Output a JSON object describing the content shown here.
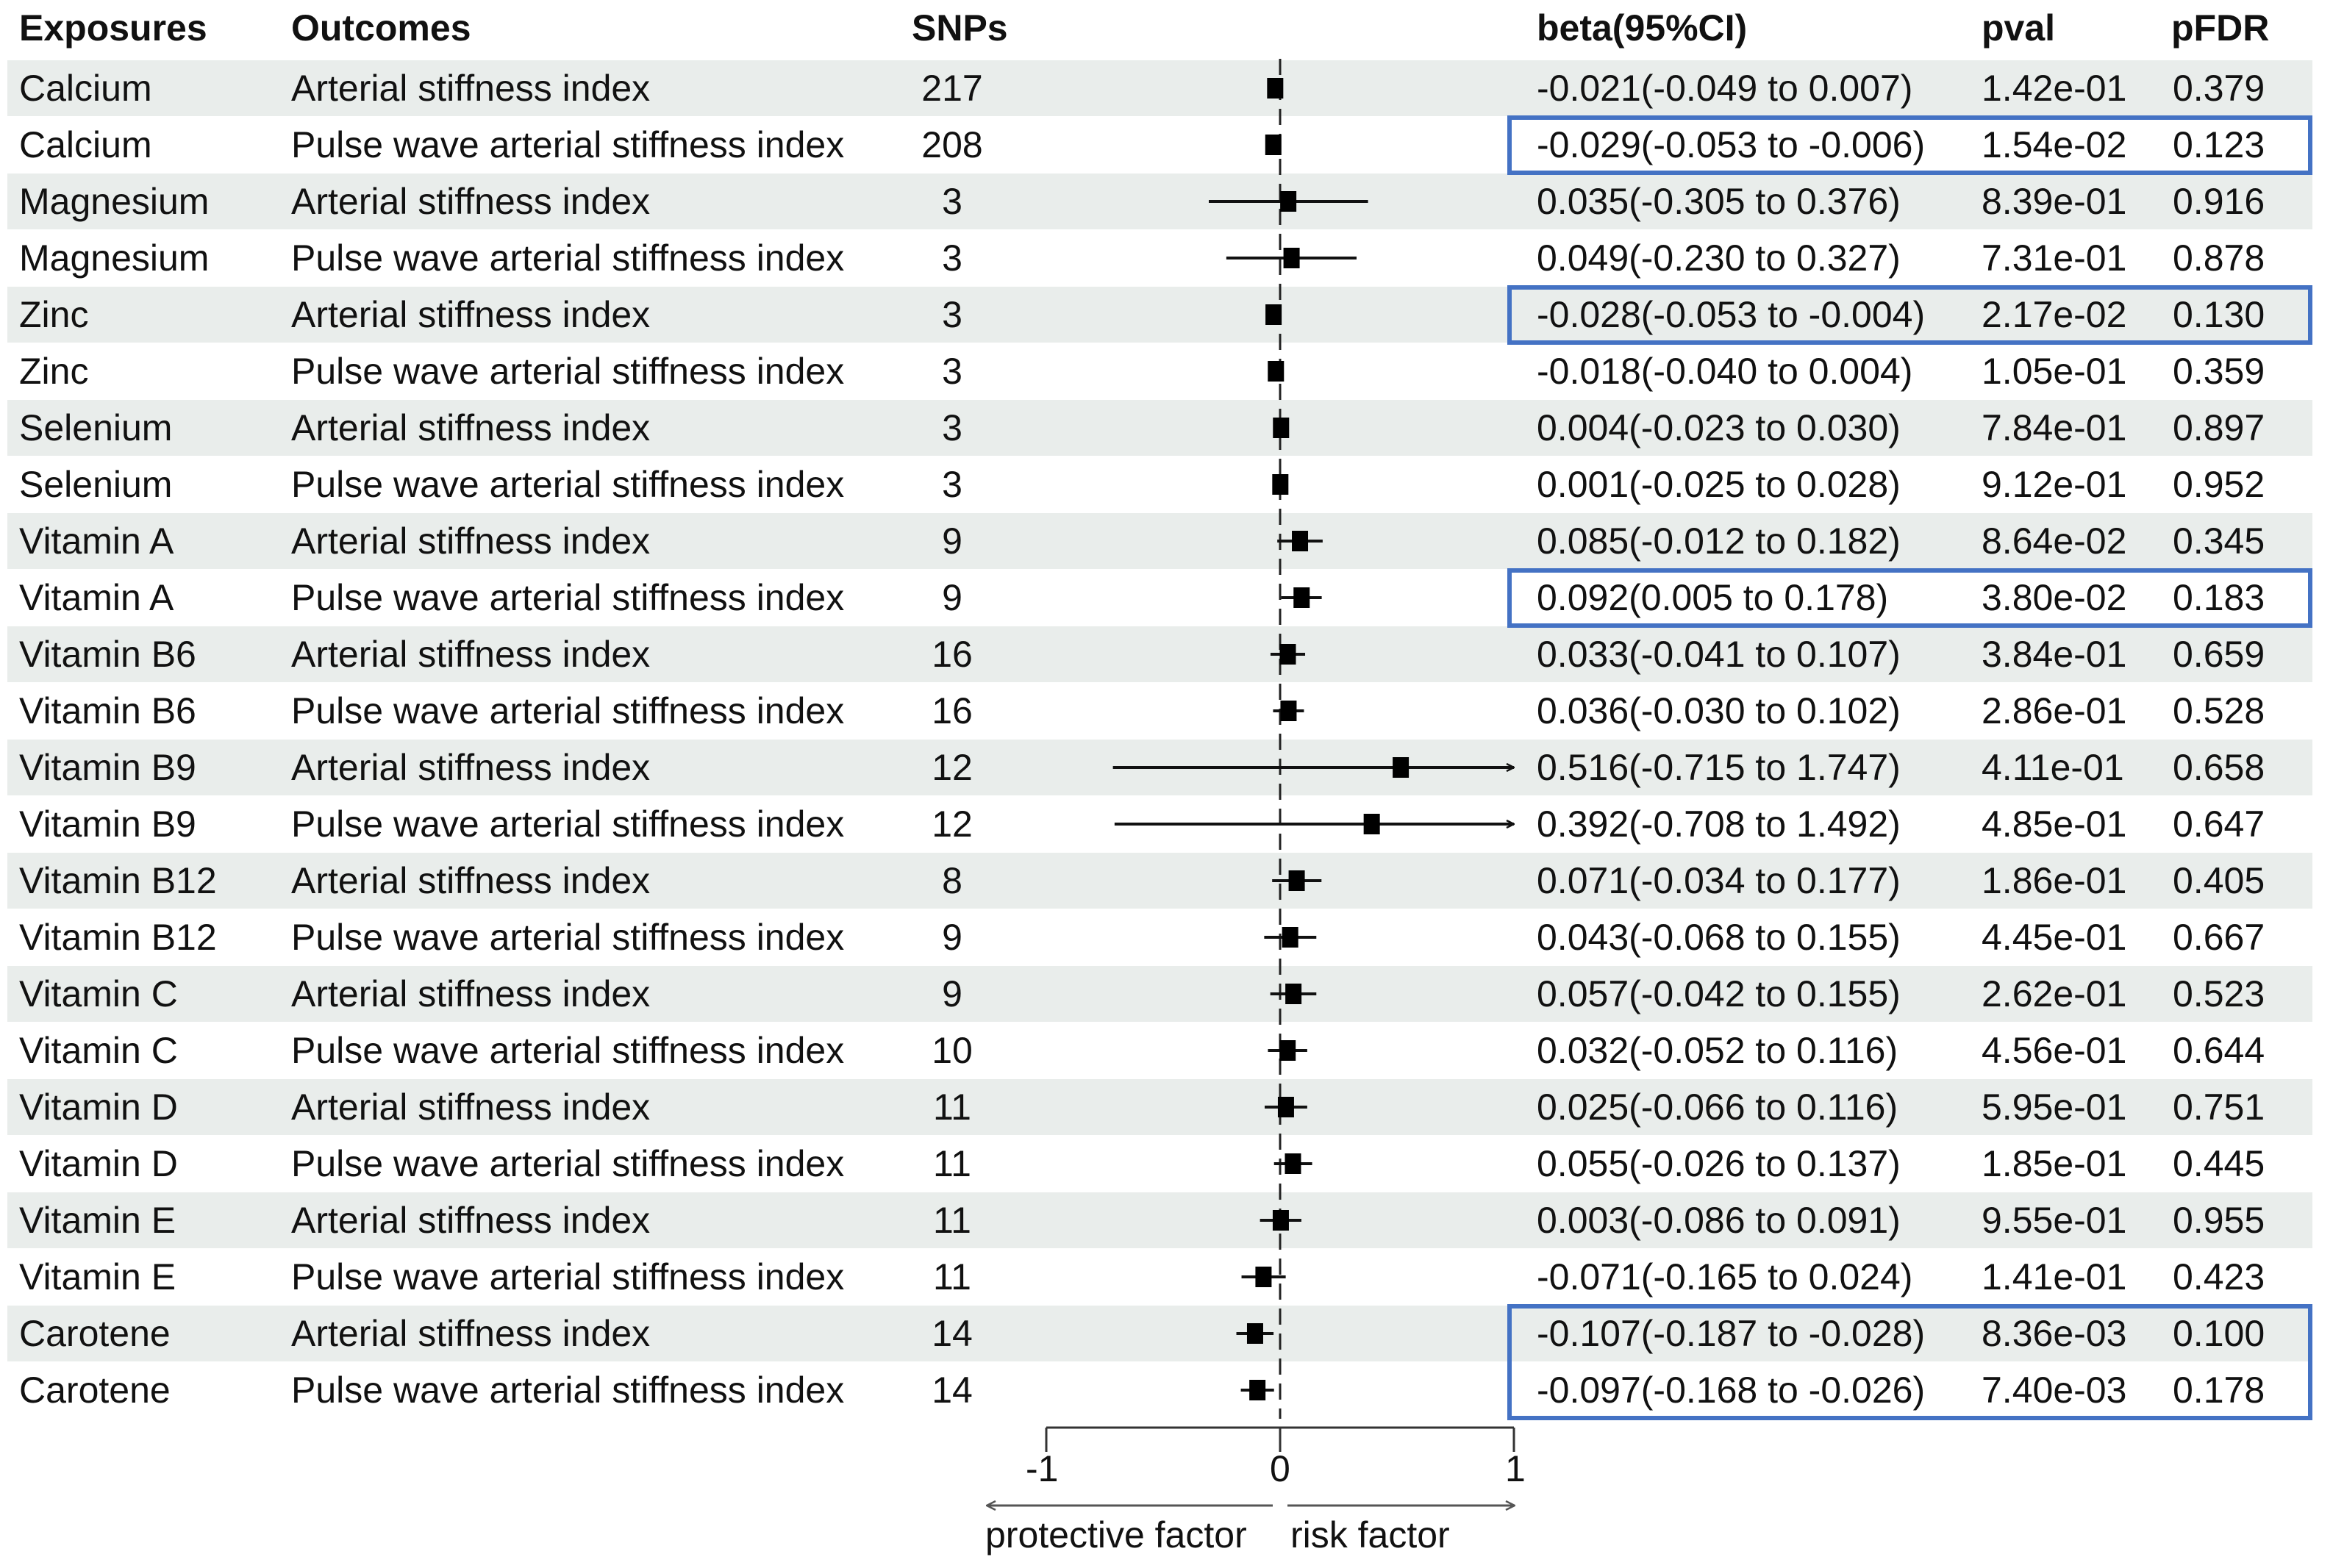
{
  "headers": {
    "exposures": "Exposures",
    "outcomes": "Outcomes",
    "snps": "SNPs",
    "beta": "beta(95%CI)",
    "pval": "pval",
    "pfdr": "pFDR"
  },
  "colors": {
    "row_shade": "#e9edeb",
    "highlight_box": "#4472c4",
    "marker": "#000000"
  },
  "axis": {
    "ticks": [
      "-1",
      "0",
      "1"
    ],
    "left_label": "protective factor",
    "right_label": "risk factor"
  },
  "chart_data": {
    "type": "forest",
    "title": "",
    "xlabel": "",
    "xlim": [
      -1,
      1
    ],
    "reference_line": 0,
    "xticks": [
      -1,
      0,
      1
    ],
    "direction_labels": {
      "negative": "protective factor",
      "positive": "risk factor"
    },
    "columns": [
      "Exposures",
      "Outcomes",
      "SNPs",
      "beta(95%CI)",
      "pval",
      "pFDR"
    ],
    "rows": [
      {
        "exposure": "Calcium",
        "outcome": "Arterial stiffness index",
        "snps": "217",
        "beta": -0.021,
        "lower": -0.049,
        "upper": 0.007,
        "beta_text": "-0.021(-0.049 to 0.007)",
        "pval": "1.42e-01",
        "pfdr": "0.379",
        "highlighted": false
      },
      {
        "exposure": "Calcium",
        "outcome": "Pulse wave arterial stiffness index",
        "snps": "208",
        "beta": -0.029,
        "lower": -0.053,
        "upper": -0.006,
        "beta_text": "-0.029(-0.053 to -0.006)",
        "pval": "1.54e-02",
        "pfdr": "0.123",
        "highlighted": true
      },
      {
        "exposure": "Magnesium",
        "outcome": "Arterial stiffness index",
        "snps": "3",
        "beta": 0.035,
        "lower": -0.305,
        "upper": 0.376,
        "beta_text": "0.035(-0.305 to 0.376)",
        "pval": "8.39e-01",
        "pfdr": "0.916",
        "highlighted": false
      },
      {
        "exposure": "Magnesium",
        "outcome": "Pulse wave arterial stiffness index",
        "snps": "3",
        "beta": 0.049,
        "lower": -0.23,
        "upper": 0.327,
        "beta_text": "0.049(-0.230 to 0.327)",
        "pval": "7.31e-01",
        "pfdr": "0.878",
        "highlighted": false
      },
      {
        "exposure": "Zinc",
        "outcome": "Arterial stiffness index",
        "snps": "3",
        "beta": -0.028,
        "lower": -0.053,
        "upper": -0.004,
        "beta_text": "-0.028(-0.053 to -0.004)",
        "pval": "2.17e-02",
        "pfdr": "0.130",
        "highlighted": true
      },
      {
        "exposure": "Zinc",
        "outcome": "Pulse wave arterial stiffness index",
        "snps": "3",
        "beta": -0.018,
        "lower": -0.04,
        "upper": 0.004,
        "beta_text": "-0.018(-0.040 to 0.004)",
        "pval": "1.05e-01",
        "pfdr": "0.359",
        "highlighted": false
      },
      {
        "exposure": "Selenium",
        "outcome": "Arterial stiffness index",
        "snps": "3",
        "beta": 0.004,
        "lower": -0.023,
        "upper": 0.03,
        "beta_text": "0.004(-0.023 to 0.030)",
        "pval": "7.84e-01",
        "pfdr": "0.897",
        "highlighted": false
      },
      {
        "exposure": "Selenium",
        "outcome": "Pulse wave arterial stiffness index",
        "snps": "3",
        "beta": 0.001,
        "lower": -0.025,
        "upper": 0.028,
        "beta_text": "0.001(-0.025 to 0.028)",
        "pval": "9.12e-01",
        "pfdr": "0.952",
        "highlighted": false
      },
      {
        "exposure": "Vitamin A",
        "outcome": "Arterial stiffness index",
        "snps": "9",
        "beta": 0.085,
        "lower": -0.012,
        "upper": 0.182,
        "beta_text": "0.085(-0.012 to 0.182)",
        "pval": "8.64e-02",
        "pfdr": "0.345",
        "highlighted": false
      },
      {
        "exposure": "Vitamin A",
        "outcome": "Pulse wave arterial stiffness index",
        "snps": "9",
        "beta": 0.092,
        "lower": 0.005,
        "upper": 0.178,
        "beta_text": "0.092(0.005 to 0.178)",
        "pval": "3.80e-02",
        "pfdr": "0.183",
        "highlighted": true
      },
      {
        "exposure": "Vitamin B6",
        "outcome": "Arterial stiffness index",
        "snps": "16",
        "beta": 0.033,
        "lower": -0.041,
        "upper": 0.107,
        "beta_text": "0.033(-0.041 to 0.107)",
        "pval": "3.84e-01",
        "pfdr": "0.659",
        "highlighted": false
      },
      {
        "exposure": "Vitamin B6",
        "outcome": "Pulse wave arterial stiffness index",
        "snps": "16",
        "beta": 0.036,
        "lower": -0.03,
        "upper": 0.102,
        "beta_text": "0.036(-0.030 to 0.102)",
        "pval": "2.86e-01",
        "pfdr": "0.528",
        "highlighted": false
      },
      {
        "exposure": "Vitamin B9",
        "outcome": "Arterial stiffness index",
        "snps": "12",
        "beta": 0.516,
        "lower": -0.715,
        "upper": 1.747,
        "beta_text": "0.516(-0.715 to 1.747)",
        "pval": "4.11e-01",
        "pfdr": "0.658",
        "highlighted": false
      },
      {
        "exposure": "Vitamin B9",
        "outcome": "Pulse wave arterial stiffness index",
        "snps": "12",
        "beta": 0.392,
        "lower": -0.708,
        "upper": 1.492,
        "beta_text": "0.392(-0.708 to 1.492)",
        "pval": "4.85e-01",
        "pfdr": "0.647",
        "highlighted": false
      },
      {
        "exposure": "Vitamin B12",
        "outcome": "Arterial stiffness index",
        "snps": "8",
        "beta": 0.071,
        "lower": -0.034,
        "upper": 0.177,
        "beta_text": "0.071(-0.034 to 0.177)",
        "pval": "1.86e-01",
        "pfdr": "0.405",
        "highlighted": false
      },
      {
        "exposure": "Vitamin B12",
        "outcome": "Pulse wave arterial stiffness index",
        "snps": "9",
        "beta": 0.043,
        "lower": -0.068,
        "upper": 0.155,
        "beta_text": "0.043(-0.068 to 0.155)",
        "pval": "4.45e-01",
        "pfdr": "0.667",
        "highlighted": false
      },
      {
        "exposure": "Vitamin C",
        "outcome": "Arterial stiffness index",
        "snps": "9",
        "beta": 0.057,
        "lower": -0.042,
        "upper": 0.155,
        "beta_text": "0.057(-0.042 to 0.155)",
        "pval": "2.62e-01",
        "pfdr": "0.523",
        "highlighted": false
      },
      {
        "exposure": "Vitamin C",
        "outcome": "Pulse wave arterial stiffness index",
        "snps": "10",
        "beta": 0.032,
        "lower": -0.052,
        "upper": 0.116,
        "beta_text": "0.032(-0.052 to 0.116)",
        "pval": "4.56e-01",
        "pfdr": "0.644",
        "highlighted": false
      },
      {
        "exposure": "Vitamin D",
        "outcome": "Arterial stiffness index",
        "snps": "11",
        "beta": 0.025,
        "lower": -0.066,
        "upper": 0.116,
        "beta_text": "0.025(-0.066 to 0.116)",
        "pval": "5.95e-01",
        "pfdr": "0.751",
        "highlighted": false
      },
      {
        "exposure": "Vitamin D",
        "outcome": "Pulse wave arterial stiffness index",
        "snps": "11",
        "beta": 0.055,
        "lower": -0.026,
        "upper": 0.137,
        "beta_text": "0.055(-0.026 to 0.137)",
        "pval": "1.85e-01",
        "pfdr": "0.445",
        "highlighted": false
      },
      {
        "exposure": "Vitamin E",
        "outcome": "Arterial stiffness index",
        "snps": "11",
        "beta": 0.003,
        "lower": -0.086,
        "upper": 0.091,
        "beta_text": "0.003(-0.086 to 0.091)",
        "pval": "9.55e-01",
        "pfdr": "0.955",
        "highlighted": false
      },
      {
        "exposure": "Vitamin E",
        "outcome": "Pulse wave arterial stiffness index",
        "snps": "11",
        "beta": -0.071,
        "lower": -0.165,
        "upper": 0.024,
        "beta_text": "-0.071(-0.165 to 0.024)",
        "pval": "1.41e-01",
        "pfdr": "0.423",
        "highlighted": false
      },
      {
        "exposure": "Carotene",
        "outcome": "Arterial stiffness index",
        "snps": "14",
        "beta": -0.107,
        "lower": -0.187,
        "upper": -0.028,
        "beta_text": "-0.107(-0.187 to -0.028)",
        "pval": "8.36e-03",
        "pfdr": "0.100",
        "highlighted": true,
        "highlight_group": "carotene"
      },
      {
        "exposure": "Carotene",
        "outcome": "Pulse wave arterial stiffness index",
        "snps": "14",
        "beta": -0.097,
        "lower": -0.168,
        "upper": -0.026,
        "beta_text": "-0.097(-0.168 to -0.026)",
        "pval": "7.40e-03",
        "pfdr": "0.178",
        "highlighted": true,
        "highlight_group": "carotene"
      }
    ]
  }
}
